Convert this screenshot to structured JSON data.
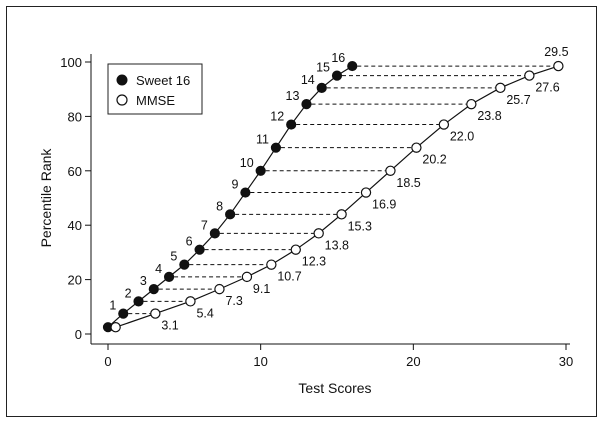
{
  "chart_data": {
    "type": "scatter",
    "title": "",
    "xlabel": "Test Scores",
    "ylabel": "Percentile Rank",
    "xlim": [
      0,
      30
    ],
    "ylim": [
      0,
      100
    ],
    "xticks": [
      0,
      10,
      20,
      30
    ],
    "yticks": [
      0,
      20,
      40,
      60,
      80,
      100
    ],
    "grid": false,
    "legend_position": "top-left",
    "connector_lines": "dashed",
    "series": [
      {
        "name": "Sweet 16",
        "marker": "filled-circle",
        "color": "#111111",
        "x": [
          0,
          1,
          2,
          3,
          4,
          5,
          6,
          7,
          8,
          9,
          10,
          11,
          12,
          13,
          14,
          15,
          16
        ],
        "y": [
          2.5,
          7.5,
          12,
          16.5,
          21,
          25.5,
          31,
          37,
          44,
          52,
          60,
          68.5,
          77,
          84.5,
          90.5,
          95,
          98.5
        ],
        "point_labels": [
          "",
          "1",
          "2",
          "3",
          "4",
          "5",
          "6",
          "7",
          "8",
          "9",
          "10",
          "11",
          "12",
          "13",
          "14",
          "15",
          "16"
        ]
      },
      {
        "name": "MMSE",
        "marker": "open-circle",
        "color": "#111111",
        "x": [
          0.5,
          3.1,
          5.4,
          7.3,
          9.1,
          10.7,
          12.3,
          13.8,
          15.3,
          16.9,
          18.5,
          20.2,
          22.0,
          23.8,
          25.7,
          27.6,
          29.5
        ],
        "y": [
          2.5,
          7.5,
          12,
          16.5,
          21,
          25.5,
          31,
          37,
          44,
          52,
          60,
          68.5,
          77,
          84.5,
          90.5,
          95,
          98.5
        ],
        "point_labels": [
          "",
          "3.1",
          "5.4",
          "7.3",
          "9.1",
          "10.7",
          "12.3",
          "13.8",
          "15.3",
          "16.9",
          "18.5",
          "20.2",
          "22.0",
          "23.8",
          "25.7",
          "27.6",
          "29.5"
        ]
      }
    ]
  }
}
